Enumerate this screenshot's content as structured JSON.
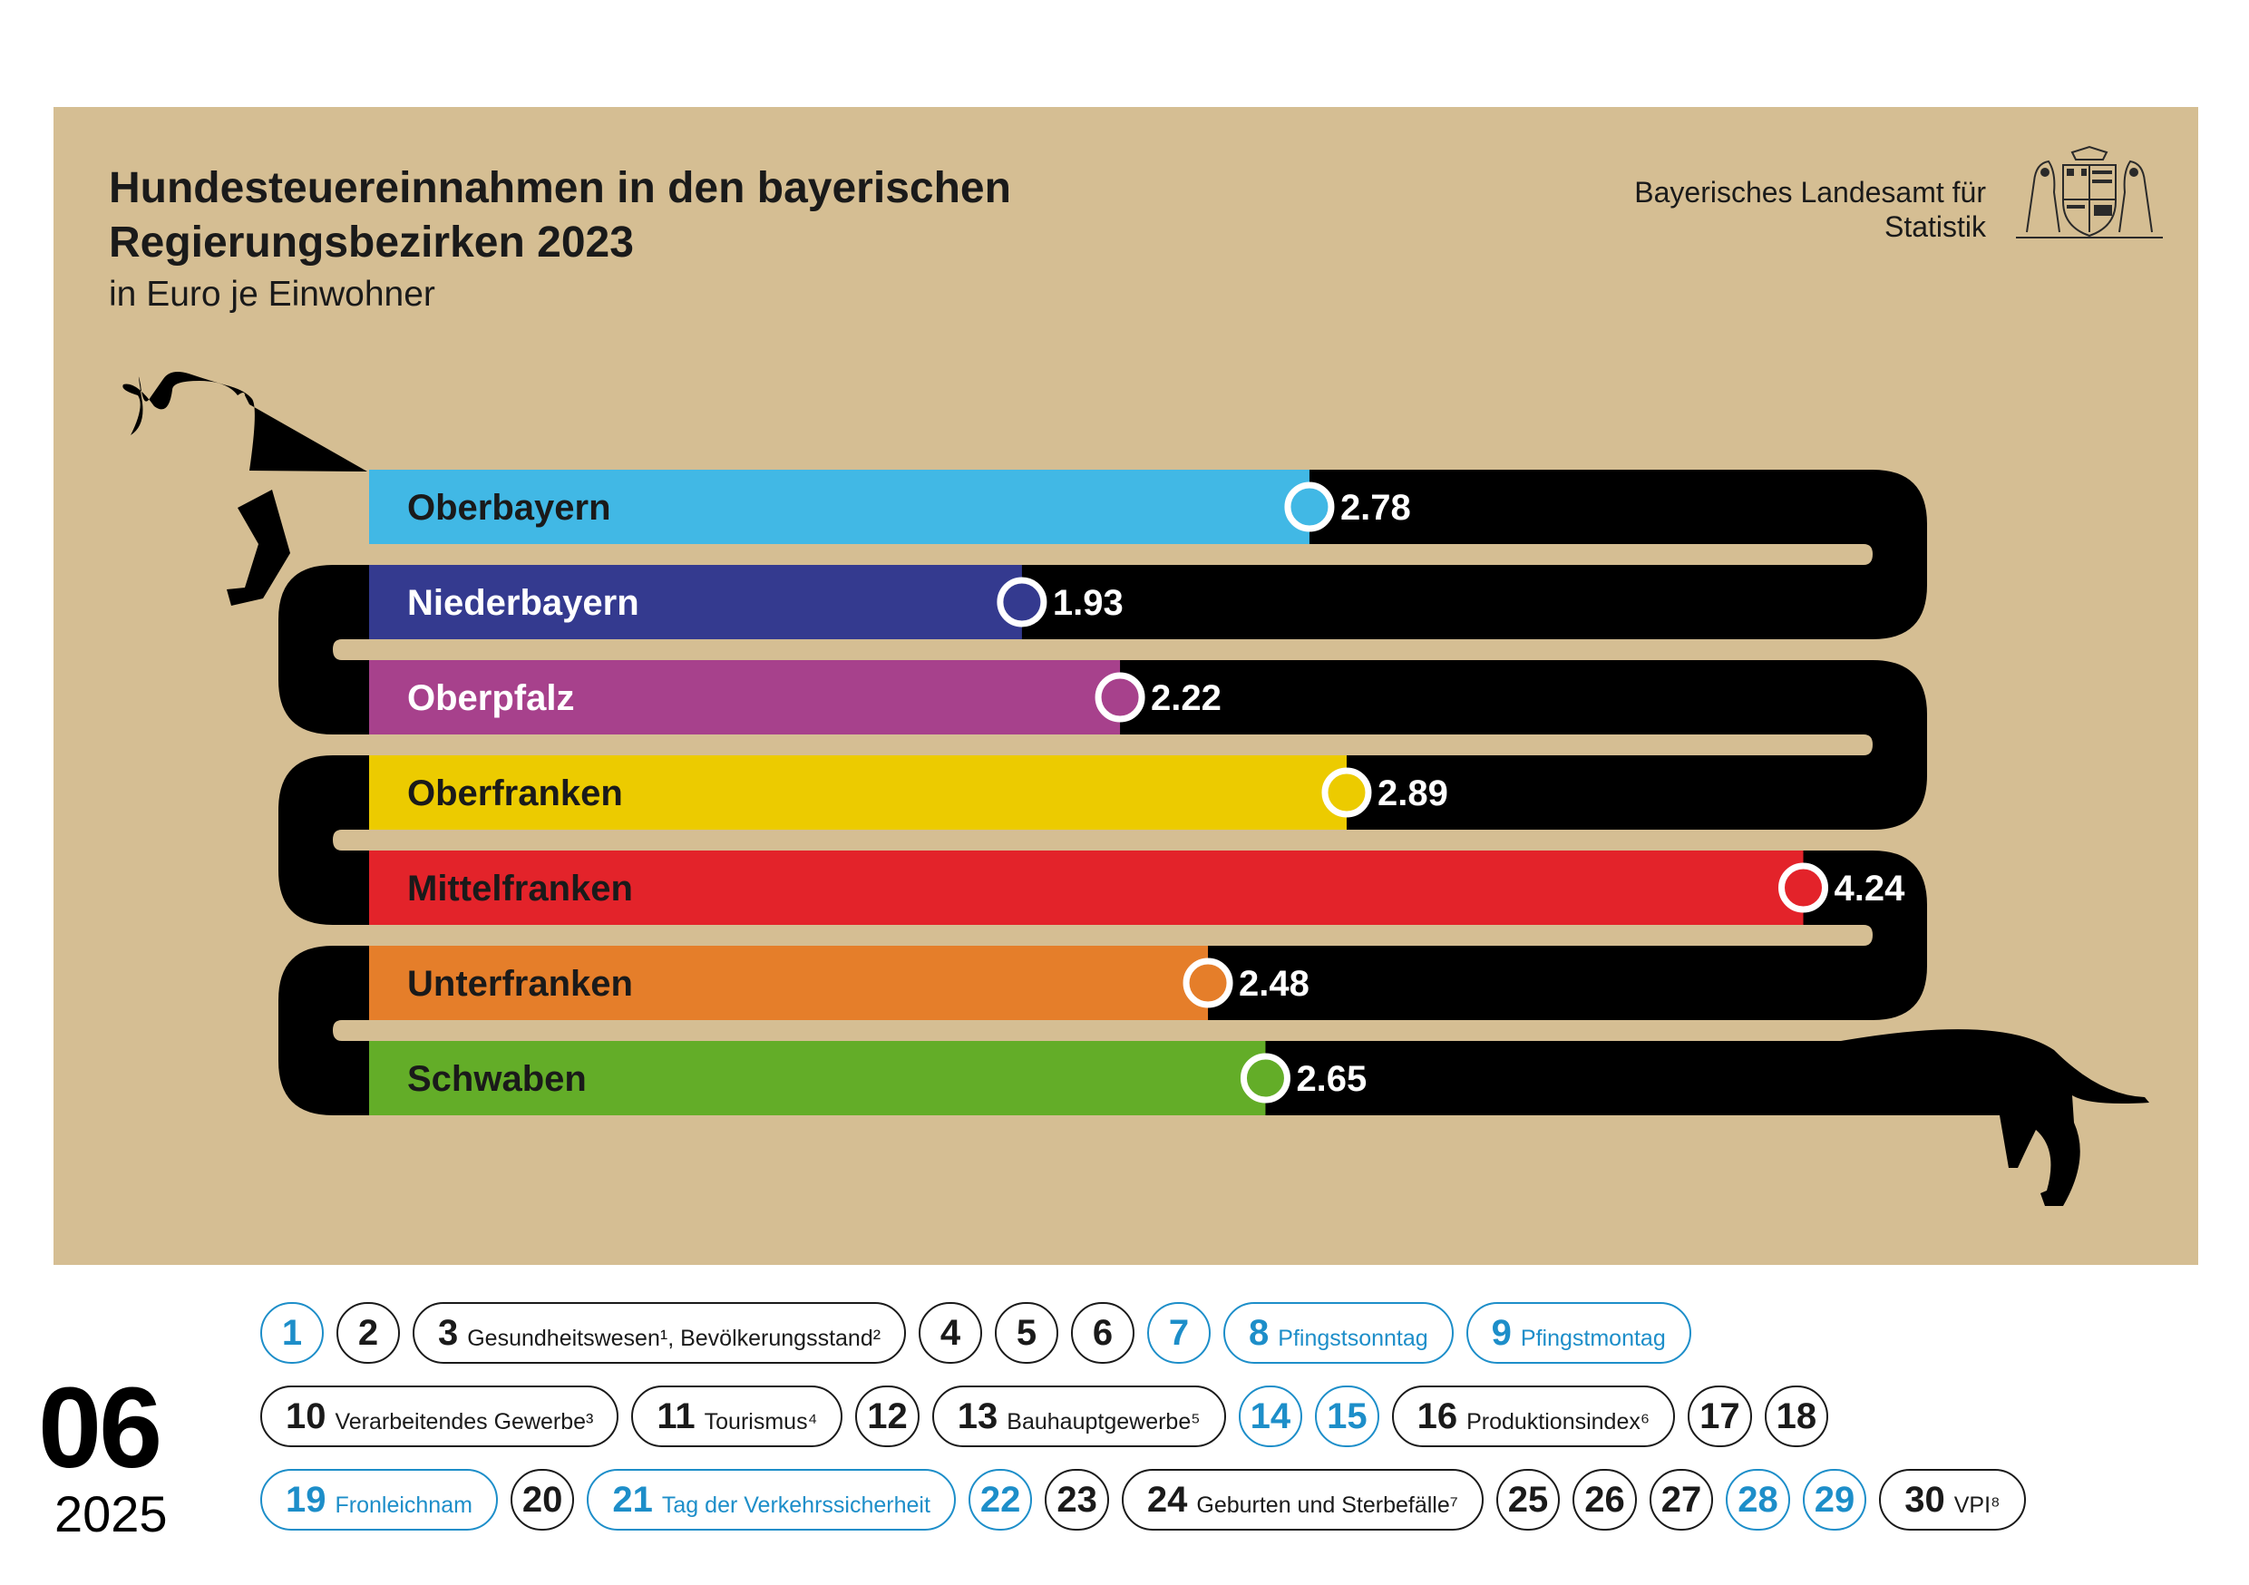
{
  "chart_data": {
    "type": "bar",
    "title": "Hundesteuereinnahmen in den bayerischen Regierungsbezirken 2023",
    "subtitle": "in Euro je Einwohner",
    "categories": [
      "Oberbayern",
      "Niederbayern",
      "Oberpfalz",
      "Oberfranken",
      "Mittelfranken",
      "Unterfranken",
      "Schwaben"
    ],
    "values": [
      2.78,
      1.93,
      2.22,
      2.89,
      4.24,
      2.48,
      2.65
    ],
    "value_labels": [
      "2.78",
      "1.93",
      "2.22",
      "2.89",
      "4.24",
      "2.48",
      "2.65"
    ],
    "colors": [
      "#41b8e5",
      "#343a8f",
      "#a7418c",
      "#eccb00",
      "#e3232a",
      "#e57e2a",
      "#63ad28"
    ],
    "label_colors": [
      "#1a1a1a",
      "#ffffff",
      "#ffffff",
      "#1a1a1a",
      "#1a1a1a",
      "#1a1a1a",
      "#1a1a1a"
    ],
    "ylim": [
      0,
      4.3
    ]
  },
  "header": {
    "institution_line1": "Bayerisches Landesamt für",
    "institution_line2": "Statistik",
    "crest_icon": "bavarian-coat-of-arms-icon"
  },
  "calendar": {
    "month": "06",
    "year": "2025",
    "holiday_color": "#1d8ec9",
    "days": [
      {
        "day": "1",
        "label": "",
        "holiday": true
      },
      {
        "day": "2",
        "label": "",
        "holiday": false
      },
      {
        "day": "3",
        "label": "Gesundheitswesen¹, Bevölkerungsstand²",
        "holiday": false
      },
      {
        "day": "4",
        "label": "",
        "holiday": false
      },
      {
        "day": "5",
        "label": "",
        "holiday": false
      },
      {
        "day": "6",
        "label": "",
        "holiday": false
      },
      {
        "day": "7",
        "label": "",
        "holiday": true
      },
      {
        "day": "8",
        "label": "Pfingstsonntag",
        "holiday": true
      },
      {
        "day": "9",
        "label": "Pfingstmontag",
        "holiday": true
      },
      {
        "day": "10",
        "label": "Verarbeitendes Gewerbe³",
        "holiday": false
      },
      {
        "day": "11",
        "label": "Tourismus⁴",
        "holiday": false
      },
      {
        "day": "12",
        "label": "",
        "holiday": false
      },
      {
        "day": "13",
        "label": "Bauhauptgewerbe⁵",
        "holiday": false
      },
      {
        "day": "14",
        "label": "",
        "holiday": true
      },
      {
        "day": "15",
        "label": "",
        "holiday": true
      },
      {
        "day": "16",
        "label": "Produktionsindex⁶",
        "holiday": false
      },
      {
        "day": "17",
        "label": "",
        "holiday": false
      },
      {
        "day": "18",
        "label": "",
        "holiday": false
      },
      {
        "day": "19",
        "label": "Fronleichnam",
        "holiday": true
      },
      {
        "day": "20",
        "label": "",
        "holiday": false
      },
      {
        "day": "21",
        "label": "Tag der Verkehrssicherheit",
        "holiday": true
      },
      {
        "day": "22",
        "label": "",
        "holiday": true
      },
      {
        "day": "23",
        "label": "",
        "holiday": false
      },
      {
        "day": "24",
        "label": "Geburten und Sterbefälle⁷",
        "holiday": false
      },
      {
        "day": "25",
        "label": "",
        "holiday": false
      },
      {
        "day": "26",
        "label": "",
        "holiday": false
      },
      {
        "day": "27",
        "label": "",
        "holiday": false
      },
      {
        "day": "28",
        "label": "",
        "holiday": true
      },
      {
        "day": "29",
        "label": "",
        "holiday": true
      },
      {
        "day": "30",
        "label": "VPI⁸",
        "holiday": false
      }
    ]
  }
}
